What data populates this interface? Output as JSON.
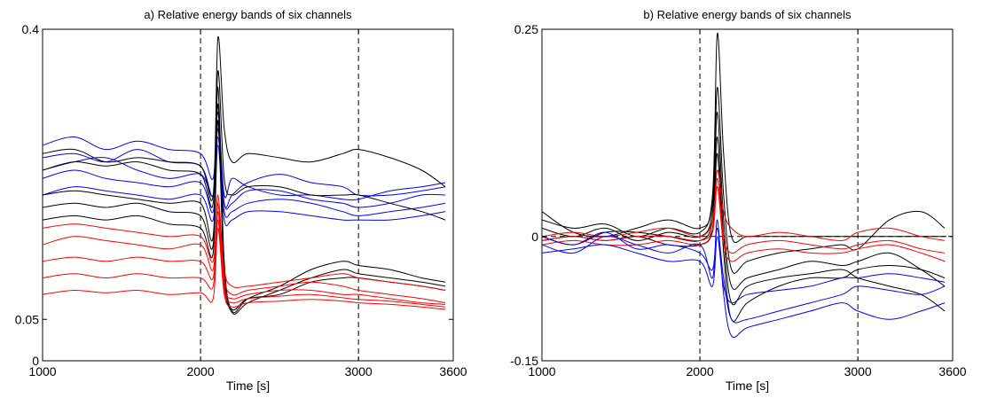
{
  "chart_data": [
    {
      "type": "line",
      "title": "a) Relative energy bands of six channels",
      "xlabel": "Time [s]",
      "ylabel": "",
      "xlim": [
        1000,
        3600
      ],
      "ylim": [
        0,
        0.4
      ],
      "xticks": [
        1000,
        2000,
        3000,
        3600
      ],
      "xtick_labels": [
        "1000",
        "2000",
        "3000",
        "3600"
      ],
      "yticks": [
        0,
        0.05,
        0.4
      ],
      "ytick_labels": [
        "0",
        "0.05",
        "0.4"
      ],
      "vlines": [
        2000,
        3000
      ],
      "grid": false,
      "x": [
        1000,
        1200,
        1400,
        1600,
        1800,
        2000,
        2080,
        2110,
        2150,
        2200,
        2300,
        2500,
        2700,
        2900,
        3000,
        3200,
        3400,
        3550
      ],
      "series": [
        {
          "color": "#0000ff",
          "values": [
            0.26,
            0.27,
            0.255,
            0.265,
            0.255,
            0.25,
            0.22,
            0.3,
            0.2,
            0.22,
            0.21,
            0.2,
            0.2,
            0.195,
            0.195,
            0.205,
            0.21,
            0.215
          ]
        },
        {
          "color": "#0000ff",
          "values": [
            0.245,
            0.25,
            0.24,
            0.255,
            0.24,
            0.235,
            0.2,
            0.29,
            0.19,
            0.2,
            0.215,
            0.225,
            0.215,
            0.21,
            0.2,
            0.2,
            0.205,
            0.21
          ]
        },
        {
          "color": "#0000ff",
          "values": [
            0.23,
            0.24,
            0.245,
            0.23,
            0.22,
            0.225,
            0.2,
            0.28,
            0.19,
            0.19,
            0.205,
            0.205,
            0.195,
            0.19,
            0.185,
            0.19,
            0.2,
            0.2
          ]
        },
        {
          "color": "#0000ff",
          "values": [
            0.22,
            0.23,
            0.22,
            0.215,
            0.21,
            0.215,
            0.18,
            0.27,
            0.18,
            0.18,
            0.19,
            0.195,
            0.19,
            0.18,
            0.175,
            0.18,
            0.185,
            0.19
          ]
        },
        {
          "color": "#0000ff",
          "values": [
            0.2,
            0.21,
            0.205,
            0.2,
            0.195,
            0.2,
            0.17,
            0.26,
            0.17,
            0.17,
            0.18,
            0.18,
            0.175,
            0.17,
            0.17,
            0.17,
            0.175,
            0.18
          ]
        },
        {
          "color": "#000000",
          "values": [
            0.25,
            0.255,
            0.24,
            0.245,
            0.24,
            0.235,
            0.2,
            0.39,
            0.28,
            0.24,
            0.25,
            0.245,
            0.24,
            0.25,
            0.255,
            0.245,
            0.23,
            0.21
          ]
        },
        {
          "color": "#000000",
          "values": [
            0.23,
            0.24,
            0.235,
            0.24,
            0.23,
            0.225,
            0.19,
            0.35,
            0.22,
            0.2,
            0.21,
            0.21,
            0.2,
            0.2,
            0.2,
            0.19,
            0.18,
            0.17
          ]
        },
        {
          "color": "#000000",
          "values": [
            0.2,
            0.205,
            0.2,
            0.195,
            0.19,
            0.19,
            0.15,
            0.33,
            0.12,
            0.06,
            0.075,
            0.09,
            0.11,
            0.12,
            0.115,
            0.11,
            0.1,
            0.095
          ]
        },
        {
          "color": "#000000",
          "values": [
            0.185,
            0.19,
            0.185,
            0.19,
            0.18,
            0.175,
            0.14,
            0.31,
            0.11,
            0.058,
            0.07,
            0.085,
            0.1,
            0.11,
            0.105,
            0.1,
            0.095,
            0.09
          ]
        },
        {
          "color": "#000000",
          "values": [
            0.17,
            0.175,
            0.17,
            0.175,
            0.165,
            0.16,
            0.13,
            0.29,
            0.1,
            0.062,
            0.075,
            0.08,
            0.095,
            0.1,
            0.1,
            0.095,
            0.09,
            0.085
          ]
        },
        {
          "color": "#ff0000",
          "values": [
            0.16,
            0.165,
            0.16,
            0.155,
            0.15,
            0.15,
            0.12,
            0.2,
            0.11,
            0.09,
            0.09,
            0.095,
            0.1,
            0.105,
            0.1,
            0.095,
            0.09,
            0.085
          ]
        },
        {
          "color": "#ff0000",
          "values": [
            0.14,
            0.15,
            0.145,
            0.14,
            0.135,
            0.14,
            0.11,
            0.19,
            0.1,
            0.08,
            0.085,
            0.09,
            0.095,
            0.09,
            0.085,
            0.08,
            0.075,
            0.07
          ]
        },
        {
          "color": "#ff0000",
          "values": [
            0.12,
            0.125,
            0.12,
            0.125,
            0.12,
            0.12,
            0.1,
            0.18,
            0.09,
            0.075,
            0.08,
            0.085,
            0.085,
            0.08,
            0.08,
            0.075,
            0.07,
            0.068
          ]
        },
        {
          "color": "#ff0000",
          "values": [
            0.1,
            0.105,
            0.1,
            0.105,
            0.1,
            0.1,
            0.09,
            0.17,
            0.085,
            0.07,
            0.075,
            0.078,
            0.08,
            0.076,
            0.074,
            0.072,
            0.068,
            0.065
          ]
        },
        {
          "color": "#ff0000",
          "values": [
            0.08,
            0.085,
            0.082,
            0.085,
            0.08,
            0.082,
            0.075,
            0.16,
            0.08,
            0.065,
            0.07,
            0.072,
            0.074,
            0.072,
            0.07,
            0.068,
            0.065,
            0.062
          ]
        }
      ]
    },
    {
      "type": "line",
      "title": "b) Relative energy bands of six channels",
      "xlabel": "Time [s]",
      "ylabel": "",
      "xlim": [
        1000,
        3600
      ],
      "ylim": [
        -0.15,
        0.25
      ],
      "xticks": [
        1000,
        2000,
        3000,
        3600
      ],
      "xtick_labels": [
        "1000",
        "2000",
        "3000",
        "3600"
      ],
      "yticks": [
        -0.15,
        0,
        0.25
      ],
      "ytick_labels": [
        "-0.15",
        "0",
        "0.25"
      ],
      "vlines": [
        2000,
        3000
      ],
      "hlines": [
        0
      ],
      "grid": false,
      "x": [
        1000,
        1200,
        1400,
        1600,
        1800,
        2000,
        2080,
        2110,
        2150,
        2200,
        2300,
        2500,
        2700,
        2900,
        3000,
        3200,
        3400,
        3550
      ],
      "series": [
        {
          "color": "#000000",
          "values": [
            0.02,
            0.01,
            0.015,
            0.0,
            0.01,
            0.005,
            0.05,
            0.245,
            0.1,
            0.0,
            0.0,
            0.0,
            0.0,
            0.0,
            0.0,
            0.0,
            0.0,
            0.0
          ]
        },
        {
          "color": "#000000",
          "values": [
            0.03,
            0.005,
            0.0,
            0.01,
            0.02,
            0.01,
            0.04,
            0.18,
            0.05,
            -0.04,
            -0.03,
            -0.02,
            -0.015,
            -0.01,
            -0.015,
            0.02,
            0.03,
            0.01
          ]
        },
        {
          "color": "#000000",
          "values": [
            0.01,
            0.0,
            0.01,
            -0.005,
            0.005,
            0.0,
            0.03,
            0.15,
            0.02,
            -0.06,
            -0.05,
            -0.04,
            -0.03,
            -0.035,
            -0.03,
            -0.02,
            -0.04,
            -0.06
          ]
        },
        {
          "color": "#000000",
          "values": [
            0.0,
            -0.01,
            0.005,
            0.005,
            0.0,
            -0.005,
            0.02,
            0.12,
            0.0,
            -0.08,
            -0.06,
            -0.05,
            -0.045,
            -0.04,
            -0.05,
            -0.06,
            -0.07,
            -0.09
          ]
        },
        {
          "color": "#000000",
          "values": [
            -0.005,
            0.0,
            -0.005,
            0.0,
            -0.01,
            -0.01,
            0.01,
            0.1,
            -0.02,
            -0.1,
            -0.08,
            -0.06,
            -0.05,
            -0.05,
            -0.04,
            -0.035,
            -0.04,
            -0.05
          ]
        },
        {
          "color": "#ff0000",
          "values": [
            0.0,
            0.005,
            0.0,
            0.005,
            0.01,
            0.0,
            0.02,
            0.08,
            0.03,
            0.01,
            0.0,
            0.005,
            0.0,
            -0.005,
            0.005,
            0.01,
            0.0,
            -0.005
          ]
        },
        {
          "color": "#ff0000",
          "values": [
            -0.005,
            0.0,
            -0.005,
            0.0,
            0.0,
            -0.005,
            0.01,
            0.07,
            0.0,
            -0.02,
            -0.01,
            -0.005,
            -0.01,
            -0.015,
            -0.01,
            -0.005,
            -0.015,
            -0.02
          ]
        },
        {
          "color": "#ff0000",
          "values": [
            -0.01,
            -0.005,
            -0.01,
            -0.01,
            -0.005,
            -0.01,
            0.005,
            0.06,
            -0.01,
            -0.03,
            -0.02,
            -0.015,
            -0.02,
            -0.02,
            -0.015,
            -0.01,
            -0.02,
            -0.03
          ]
        },
        {
          "color": "#0000ff",
          "values": [
            -0.01,
            -0.02,
            0.0,
            -0.01,
            -0.02,
            -0.01,
            -0.05,
            0.02,
            -0.07,
            -0.12,
            -0.11,
            -0.1,
            -0.09,
            -0.08,
            -0.09,
            -0.1,
            -0.09,
            -0.08
          ]
        },
        {
          "color": "#0000ff",
          "values": [
            0.0,
            -0.01,
            0.005,
            -0.015,
            -0.01,
            -0.02,
            -0.04,
            0.01,
            -0.05,
            -0.1,
            -0.1,
            -0.09,
            -0.08,
            -0.07,
            -0.06,
            -0.065,
            -0.07,
            -0.06
          ]
        },
        {
          "color": "#0000ff",
          "values": [
            -0.02,
            -0.015,
            -0.01,
            -0.02,
            -0.03,
            -0.03,
            -0.06,
            0.0,
            -0.06,
            -0.08,
            -0.07,
            -0.065,
            -0.06,
            -0.05,
            -0.05,
            -0.045,
            -0.05,
            -0.055
          ]
        }
      ]
    }
  ]
}
